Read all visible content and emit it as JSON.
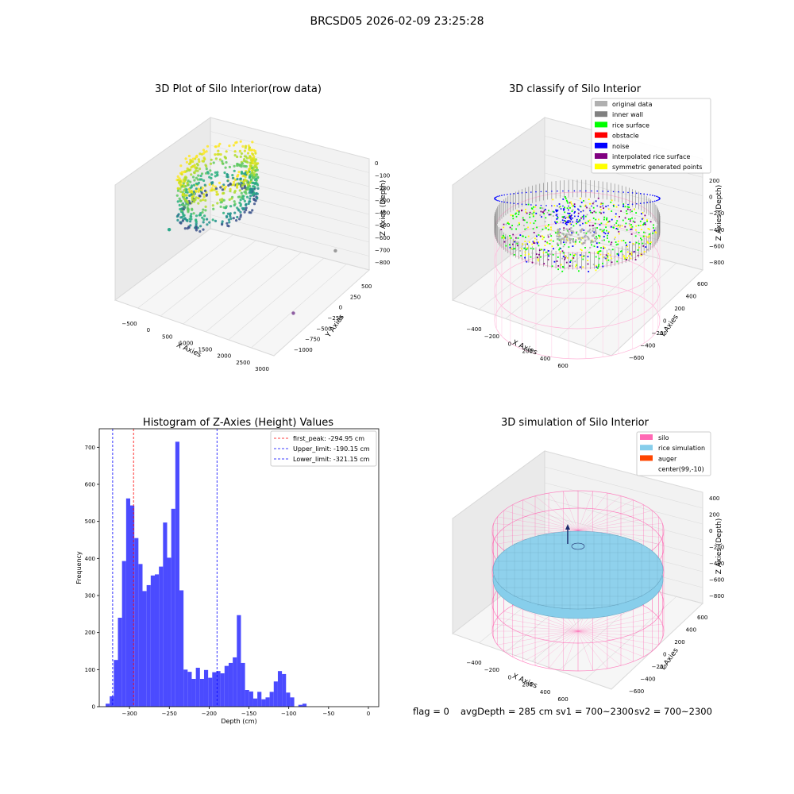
{
  "figure": {
    "suptitle": "BRCSD05 2026-02-09 23:25:28",
    "status_line": {
      "flag": "flag = 0",
      "avg_depth": "avgDepth = 285 cm",
      "sv1": "sv1 = 700~2300",
      "sv2": "sv2 = 700~2300"
    }
  },
  "chart_data": [
    {
      "type": "scatter",
      "projection": "3d",
      "title": "3D Plot of Silo Interior(row data)",
      "xlabel": "X Axies",
      "ylabel": "Y Axies",
      "zlabel": "Z Axies (Depth)",
      "xticks": [
        "−500",
        "0",
        "500",
        "1000",
        "1500",
        "2000",
        "2500",
        "3000"
      ],
      "yticks": [
        "500",
        "250",
        "0",
        "−250",
        "−500",
        "−750",
        "−1000"
      ],
      "zticks": [
        "0",
        "−100",
        "−200",
        "−300",
        "−400",
        "−500",
        "−600",
        "−700",
        "−800"
      ],
      "xlim": [
        -600,
        3100
      ],
      "ylim": [
        -1100,
        600
      ],
      "zlim": [
        -850,
        50
      ],
      "outlier_points": [
        {
          "x": -450,
          "y": -250,
          "z": -550,
          "color": "#2aa88a"
        },
        {
          "x": 2900,
          "y": 150,
          "z": -450,
          "color": "#9a9a9a"
        },
        {
          "x": 2900,
          "y": -600,
          "z": -700,
          "color": "#8e5ea2"
        }
      ],
      "colormap": "viridis"
    },
    {
      "type": "scatter",
      "projection": "3d",
      "title": "3D classify of Silo Interior",
      "xlabel": "X Axies",
      "ylabel": "Y Axies",
      "zlabel": "Z Axies (Depth)",
      "xticks": [
        "−400",
        "−200",
        "0",
        "200",
        "400",
        "600"
      ],
      "yticks": [
        "600",
        "400",
        "200",
        "0",
        "−200",
        "−400",
        "−600"
      ],
      "zticks": [
        "200",
        "0",
        "−200",
        "−400",
        "−600",
        "−800"
      ],
      "legend_position": "upper right",
      "legend": [
        {
          "label": "original data",
          "color": "#b0b0b0"
        },
        {
          "label": "inner wall",
          "color": "#808080"
        },
        {
          "label": "rice surface",
          "color": "#00ff00"
        },
        {
          "label": "obstacle",
          "color": "#ff0000"
        },
        {
          "label": "noise",
          "color": "#0000ff"
        },
        {
          "label": "interpolated rice surface",
          "color": "#800080"
        },
        {
          "label": "symmetric generated points",
          "color": "#ffff00"
        }
      ]
    },
    {
      "type": "bar",
      "title": "Histogram of Z-Axies (Height) Values",
      "xlabel": "Depth (cm)",
      "ylabel": "Frequency",
      "xlim": [
        -338,
        13
      ],
      "ylim": [
        0,
        750
      ],
      "xticks": [
        -300,
        -250,
        -200,
        -150,
        -100,
        -50,
        0
      ],
      "xtick_labels": [
        "−300",
        "−250",
        "−200",
        "−150",
        "−100",
        "−50",
        "0"
      ],
      "yticks": [
        0,
        100,
        200,
        300,
        400,
        500,
        600,
        700
      ],
      "bar_color": "#4b4bff",
      "bins_start": -330,
      "bin_width": 5.15,
      "values": [
        8,
        28,
        126,
        240,
        393,
        562,
        543,
        455,
        385,
        312,
        328,
        354,
        357,
        378,
        497,
        402,
        534,
        715,
        314,
        100,
        94,
        75,
        105,
        75,
        99,
        78,
        93,
        96,
        90,
        110,
        118,
        133,
        247,
        118,
        45,
        41,
        22,
        40,
        20,
        25,
        40,
        68,
        96,
        88,
        38,
        25,
        0,
        5,
        8
      ],
      "reference_lines": [
        {
          "label": "first_peak: -294.95 cm",
          "x": -294.95,
          "color": "#ff0000"
        },
        {
          "label": "Upper_limit: -190.15 cm",
          "x": -190.15,
          "color": "#0000ff"
        },
        {
          "label": "Lower_limit: -321.15 cm",
          "x": -321.15,
          "color": "#0000ff"
        }
      ],
      "legend_position": "upper right"
    },
    {
      "type": "surface",
      "projection": "3d",
      "title": "3D simulation of Silo Interior",
      "xlabel": "X Axies",
      "ylabel": "Y Axies",
      "zlabel": "Z Axies (Depth)",
      "xticks": [
        "−400",
        "−200",
        "0",
        "200",
        "400",
        "600"
      ],
      "yticks": [
        "600",
        "400",
        "200",
        "0",
        "−200",
        "−400",
        "−600"
      ],
      "zticks": [
        "400",
        "200",
        "0",
        "−200",
        "−400",
        "−600",
        "−800"
      ],
      "legend_position": "upper right",
      "legend": [
        {
          "label": "silo",
          "color": "#ff69b4"
        },
        {
          "label": "rice simulation",
          "color": "#87ceeb"
        },
        {
          "label": "auger",
          "color": "#ff4500"
        },
        {
          "label": "center(99,-10)",
          "color": "none"
        }
      ]
    }
  ]
}
